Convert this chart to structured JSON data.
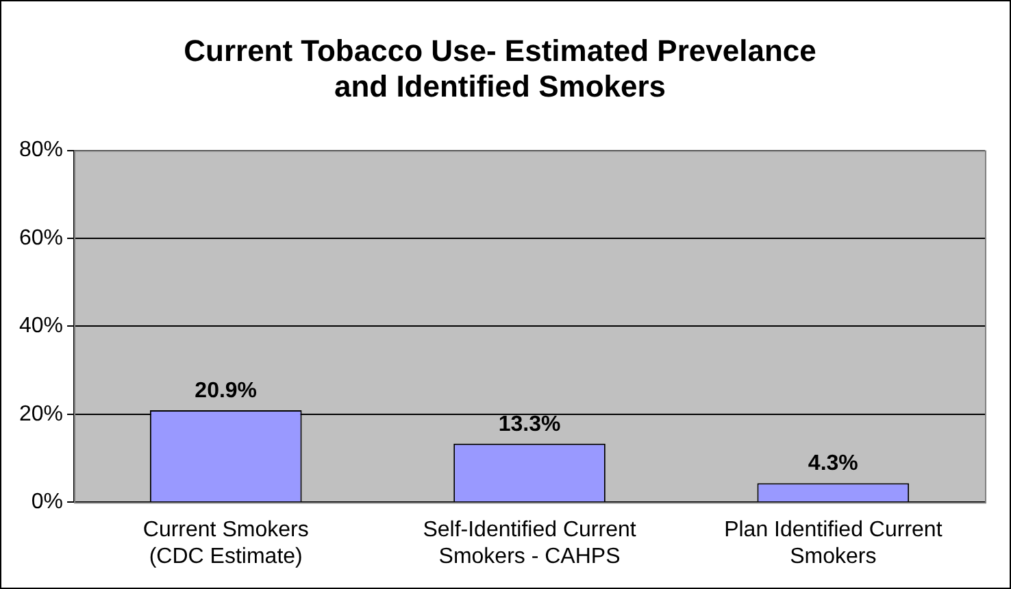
{
  "chart_data": {
    "type": "bar",
    "title": "Current Tobacco Use- Estimated Prevelance and Identified Smokers",
    "categories": [
      "Current Smokers (CDC Estimate)",
      "Self-Identified Current Smokers - CAHPS",
      "Plan Identified Current Smokers"
    ],
    "values": [
      20.9,
      13.3,
      4.3
    ],
    "color": "#9999ff",
    "value_labels": [
      "20.9%",
      "13.3%",
      "4.3%"
    ],
    "ylim": [
      0,
      80
    ],
    "yticks": [
      {
        "value": 0,
        "label": "0%"
      },
      {
        "value": 20,
        "label": "20%"
      },
      {
        "value": 40,
        "label": "40%"
      },
      {
        "value": 60,
        "label": "60%"
      },
      {
        "value": 80,
        "label": "80%"
      }
    ],
    "grid": "y",
    "legend": false
  }
}
